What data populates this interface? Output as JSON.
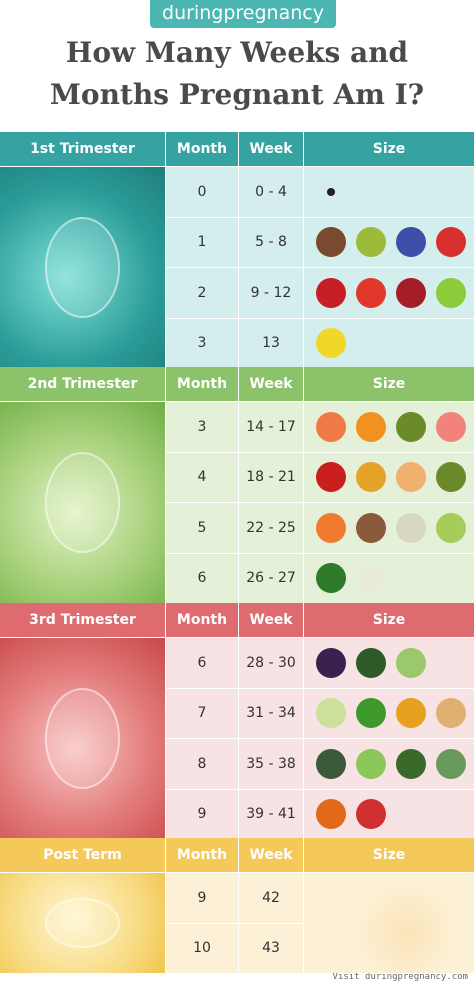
{
  "logo": "duringpregnancy",
  "title": [
    "How Many Weeks and",
    "Months Pregnant Am I?"
  ],
  "sections": [
    {
      "name": "1st Trimester",
      "headers": [
        "Month",
        "Week",
        "Size"
      ],
      "rows": [
        [
          0,
          "0 - 4"
        ],
        [
          1,
          "5 - 8"
        ],
        [
          2,
          "9 - 12"
        ],
        [
          3,
          13
        ]
      ]
    },
    {
      "name": "2nd Trimester",
      "headers": [
        "Month",
        "Week",
        "Size"
      ],
      "rows": [
        [
          3,
          "14 - 17"
        ],
        [
          4,
          "18 - 21"
        ],
        [
          5,
          "22 - 25"
        ],
        [
          6,
          "26 - 27"
        ]
      ]
    },
    {
      "name": "3rd Trimester",
      "headers": [
        "Month",
        "Week",
        "Size"
      ],
      "rows": [
        [
          6,
          "28 - 30"
        ],
        [
          7,
          "31 - 34"
        ],
        [
          8,
          "35 - 38"
        ],
        [
          9,
          "39 - 41"
        ]
      ]
    },
    {
      "name": "Post Term",
      "headers": [
        "Month",
        "Week",
        "Size"
      ],
      "rows": [
        [
          9,
          42
        ],
        [
          10,
          43
        ]
      ]
    }
  ],
  "footer": "Visit duringpregnancy.com"
}
